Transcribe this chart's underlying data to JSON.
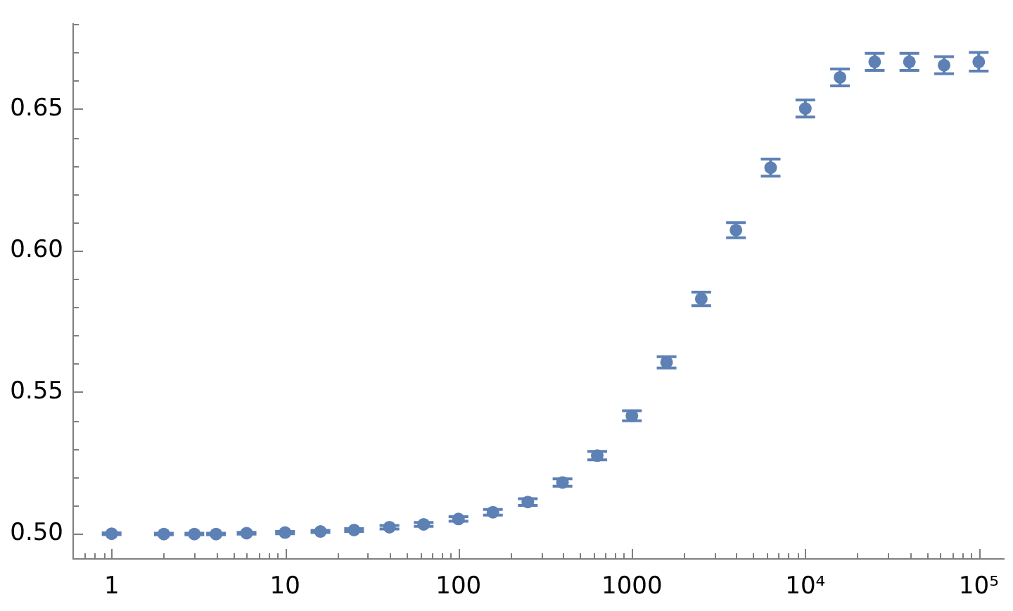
{
  "chart_data": {
    "type": "scatter",
    "x": [
      1,
      2,
      3,
      4,
      6,
      10,
      16,
      25,
      40,
      63,
      100,
      158,
      251,
      398,
      631,
      1000,
      1585,
      2512,
      3981,
      6310,
      10000,
      15849,
      25119,
      39811,
      63096,
      100000
    ],
    "values": [
      0.4999,
      0.4998,
      0.4998,
      0.4998,
      0.5001,
      0.5003,
      0.5007,
      0.5012,
      0.5022,
      0.5032,
      0.5051,
      0.5075,
      0.5111,
      0.518,
      0.5275,
      0.5416,
      0.5605,
      0.5829,
      0.6072,
      0.6293,
      0.6502,
      0.6612,
      0.6667,
      0.6667,
      0.6655,
      0.6667
    ],
    "errors": [
      0.0003,
      0.0003,
      0.0003,
      0.0003,
      0.0003,
      0.0004,
      0.0004,
      0.0005,
      0.0006,
      0.0007,
      0.0008,
      0.001,
      0.0012,
      0.0013,
      0.0015,
      0.0018,
      0.002,
      0.0024,
      0.0027,
      0.003,
      0.003,
      0.003,
      0.003,
      0.003,
      0.003,
      0.0033
    ],
    "color": "#5e81b5",
    "marker": "circle",
    "log": "x",
    "xlim": [
      0.63,
      140000
    ],
    "ylim": [
      0.491,
      0.68
    ],
    "xticks": [
      {
        "value": 0.7,
        "label": null
      },
      {
        "value": 0.8,
        "label": null
      },
      {
        "value": 0.9,
        "label": null
      },
      1,
      {
        "value": 2,
        "label": null
      },
      {
        "value": 3,
        "label": null
      },
      {
        "value": 4,
        "label": null
      },
      {
        "value": 5,
        "label": null
      },
      {
        "value": 6,
        "label": null
      },
      {
        "value": 7,
        "label": null
      },
      {
        "value": 8,
        "label": null
      },
      {
        "value": 9,
        "label": null
      },
      10,
      {
        "value": 20,
        "label": null
      },
      {
        "value": 30,
        "label": null
      },
      {
        "value": 40,
        "label": null
      },
      {
        "value": 50,
        "label": null
      },
      {
        "value": 60,
        "label": null
      },
      {
        "value": 70,
        "label": null
      },
      {
        "value": 80,
        "label": null
      },
      {
        "value": 90,
        "label": null
      },
      100,
      {
        "value": 200,
        "label": null
      },
      {
        "value": 300,
        "label": null
      },
      {
        "value": 400,
        "label": null
      },
      {
        "value": 500,
        "label": null
      },
      {
        "value": 600,
        "label": null
      },
      {
        "value": 700,
        "label": null
      },
      {
        "value": 800,
        "label": null
      },
      {
        "value": 900,
        "label": null
      },
      1000,
      {
        "value": 2000,
        "label": null
      },
      {
        "value": 3000,
        "label": null
      },
      {
        "value": 4000,
        "label": null
      },
      {
        "value": 5000,
        "label": null
      },
      {
        "value": 6000,
        "label": null
      },
      {
        "value": 7000,
        "label": null
      },
      {
        "value": 8000,
        "label": null
      },
      {
        "value": 9000,
        "label": null
      },
      {
        "value": 10000,
        "label": "10⁴"
      },
      {
        "value": 20000,
        "label": null
      },
      {
        "value": 30000,
        "label": null
      },
      {
        "value": 40000,
        "label": null
      },
      {
        "value": 50000,
        "label": null
      },
      {
        "value": 60000,
        "label": null
      },
      {
        "value": 70000,
        "label": null
      },
      {
        "value": 80000,
        "label": null
      },
      {
        "value": 90000,
        "label": null
      },
      {
        "value": 100000,
        "label": "10⁵"
      }
    ],
    "yticks": [
      {
        "value": 0.5,
        "label": "0.50"
      },
      {
        "value": 0.51,
        "label": null
      },
      {
        "value": 0.52,
        "label": null
      },
      {
        "value": 0.53,
        "label": null
      },
      {
        "value": 0.54,
        "label": null
      },
      {
        "value": 0.55,
        "label": "0.55"
      },
      {
        "value": 0.56,
        "label": null
      },
      {
        "value": 0.57,
        "label": null
      },
      {
        "value": 0.58,
        "label": null
      },
      {
        "value": 0.59,
        "label": null
      },
      {
        "value": 0.6,
        "label": "0.60"
      },
      {
        "value": 0.61,
        "label": null
      },
      {
        "value": 0.62,
        "label": null
      },
      {
        "value": 0.63,
        "label": null
      },
      {
        "value": 0.64,
        "label": null
      },
      {
        "value": 0.65,
        "label": "0.65"
      },
      {
        "value": 0.66,
        "label": null
      },
      {
        "value": 0.67,
        "label": null
      },
      {
        "value": 0.68,
        "label": null
      }
    ]
  }
}
